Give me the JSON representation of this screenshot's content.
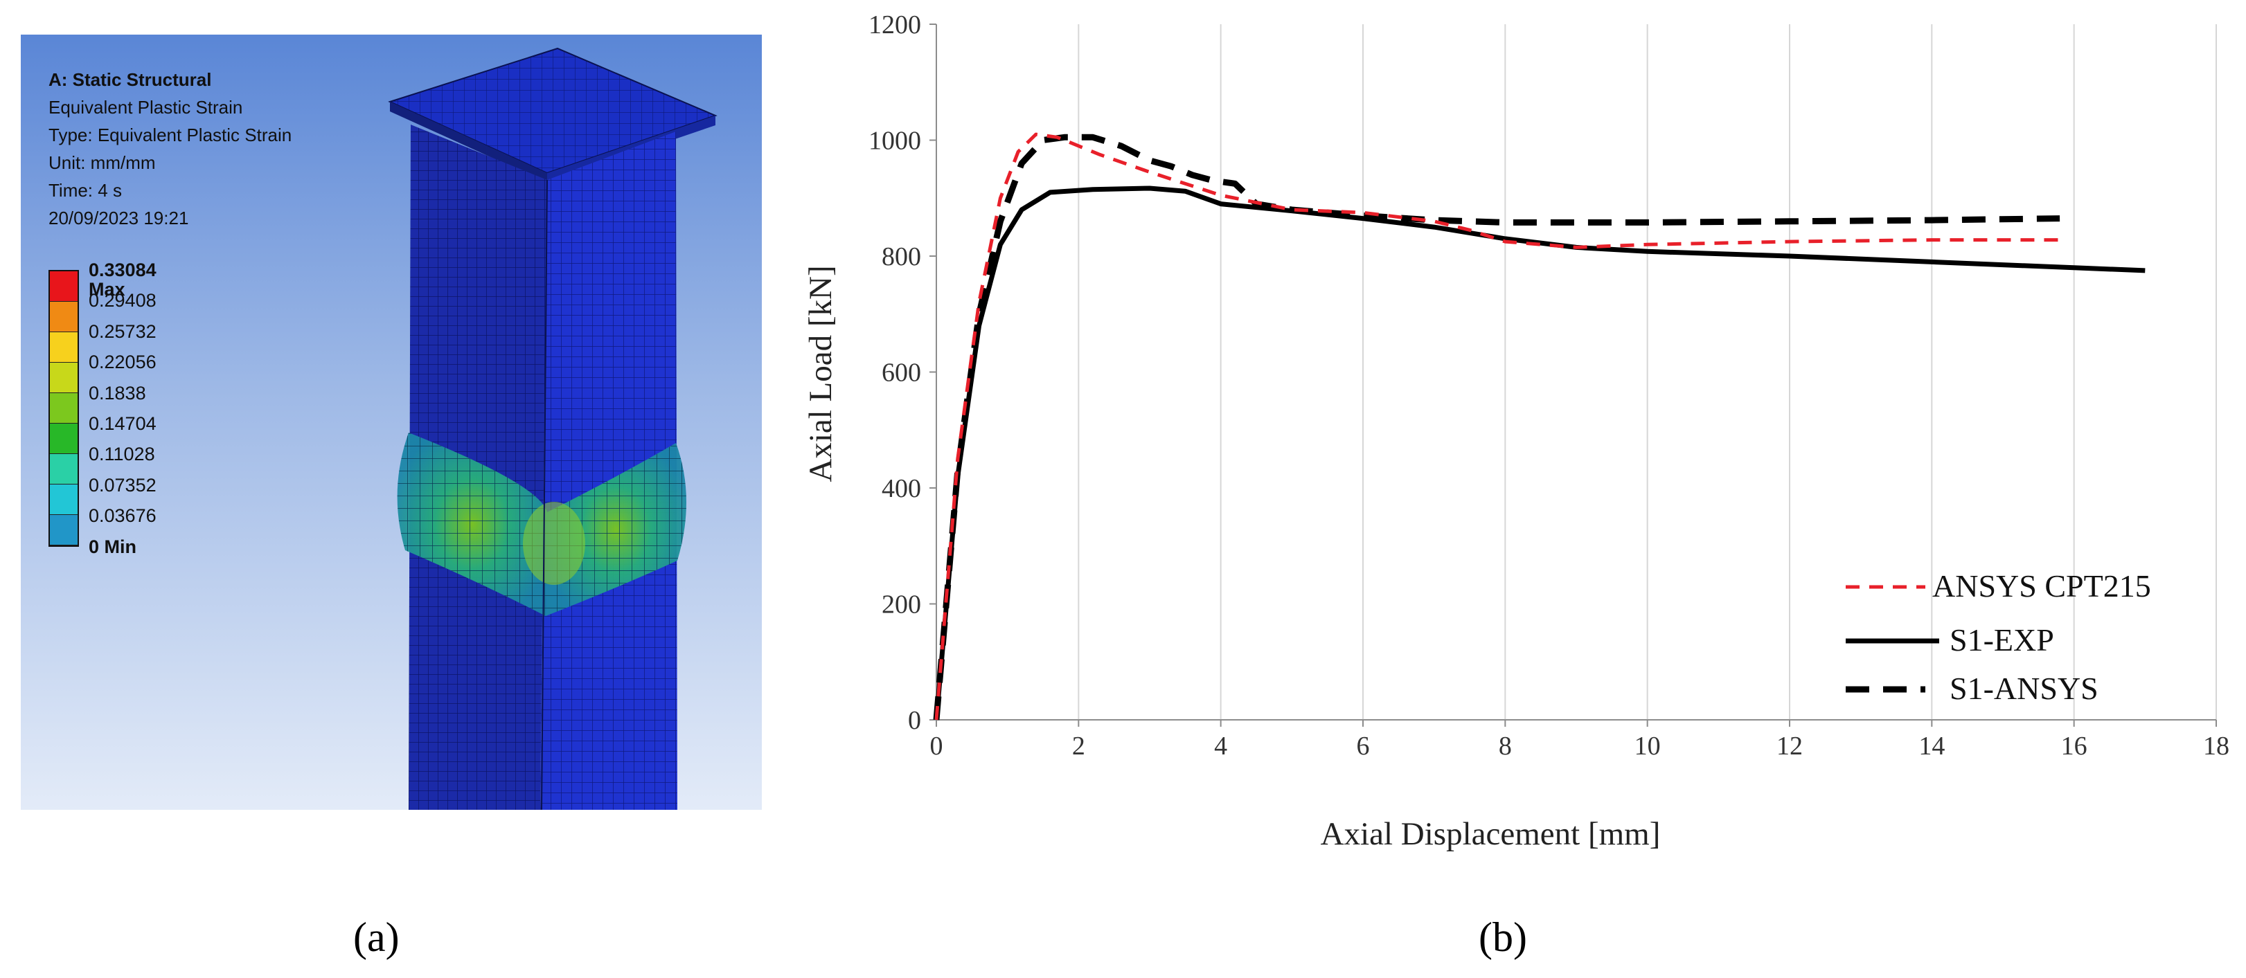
{
  "panel_a": {
    "label": "(a)",
    "info": {
      "title": "A: Static Structural",
      "result": "Equivalent Plastic Strain",
      "type": "Type: Equivalent Plastic Strain",
      "unit": "Unit: mm/mm",
      "time": "Time: 4 s",
      "date": "20/09/2023 19:21"
    },
    "scale": {
      "labels": [
        "0.33084 Max",
        "0.29408",
        "0.25732",
        "0.22056",
        "0.1838",
        "0.14704",
        "0.11028",
        "0.07352",
        "0.03676",
        "0 Min"
      ],
      "colors": [
        "#e8151b",
        "#f08a14",
        "#f7d11d",
        "#c8d81a",
        "#7cc81e",
        "#28b828",
        "#2ad0a6",
        "#22c6d6",
        "#2196c8",
        "#1a2fd8"
      ]
    }
  },
  "panel_b": {
    "label": "(b)"
  },
  "chart_data": {
    "type": "line",
    "xlabel": "Axial Displacement [mm]",
    "ylabel": "Axial Load [kN]",
    "xlim": [
      0,
      18
    ],
    "ylim": [
      0,
      1200
    ],
    "x_ticks": [
      "0",
      "2",
      "4",
      "6",
      "8",
      "10",
      "12",
      "14",
      "16",
      "18"
    ],
    "y_ticks": [
      "0",
      "200",
      "400",
      "600",
      "800",
      "1000",
      "1200"
    ],
    "grid": "vertical",
    "legend_position": "bottom-right",
    "series": [
      {
        "name": "ANSYS CPT215",
        "color": "#e8202a",
        "style": "dashed-thin",
        "x": [
          0,
          0.3,
          0.6,
          0.9,
          1.15,
          1.4,
          1.7,
          2.3,
          3.0,
          4.0,
          5.0,
          6.0,
          7.0,
          7.5,
          8.0,
          9.0,
          10.0,
          12.0,
          14.0,
          15.9
        ],
        "y": [
          0,
          450,
          720,
          900,
          980,
          1010,
          1005,
          975,
          945,
          905,
          880,
          875,
          860,
          845,
          825,
          815,
          820,
          825,
          828,
          828
        ]
      },
      {
        "name": "S1-EXP",
        "color": "#000000",
        "style": "solid",
        "x": [
          0,
          0.3,
          0.6,
          0.9,
          1.2,
          1.6,
          2.2,
          3.0,
          3.5,
          4.0,
          5.0,
          6.0,
          7.0,
          8.0,
          9.0,
          10.0,
          12.0,
          14.0,
          16.0,
          17.0
        ],
        "y": [
          0,
          420,
          680,
          820,
          880,
          910,
          915,
          917,
          912,
          890,
          878,
          865,
          850,
          830,
          815,
          808,
          800,
          790,
          780,
          775
        ]
      },
      {
        "name": "S1-ANSYS",
        "color": "#000000",
        "style": "dashed-thick",
        "x": [
          0,
          0.3,
          0.6,
          0.9,
          1.2,
          1.5,
          1.8,
          2.2,
          2.6,
          3.0,
          3.3,
          3.6,
          3.9,
          4.2,
          4.5,
          5.0,
          6.0,
          7.0,
          8.0,
          10.0,
          12.0,
          14.0,
          15.8
        ],
        "y": [
          0,
          430,
          700,
          860,
          960,
          1000,
          1005,
          1005,
          990,
          965,
          955,
          940,
          930,
          925,
          890,
          880,
          870,
          862,
          858,
          858,
          860,
          862,
          865
        ]
      }
    ]
  }
}
